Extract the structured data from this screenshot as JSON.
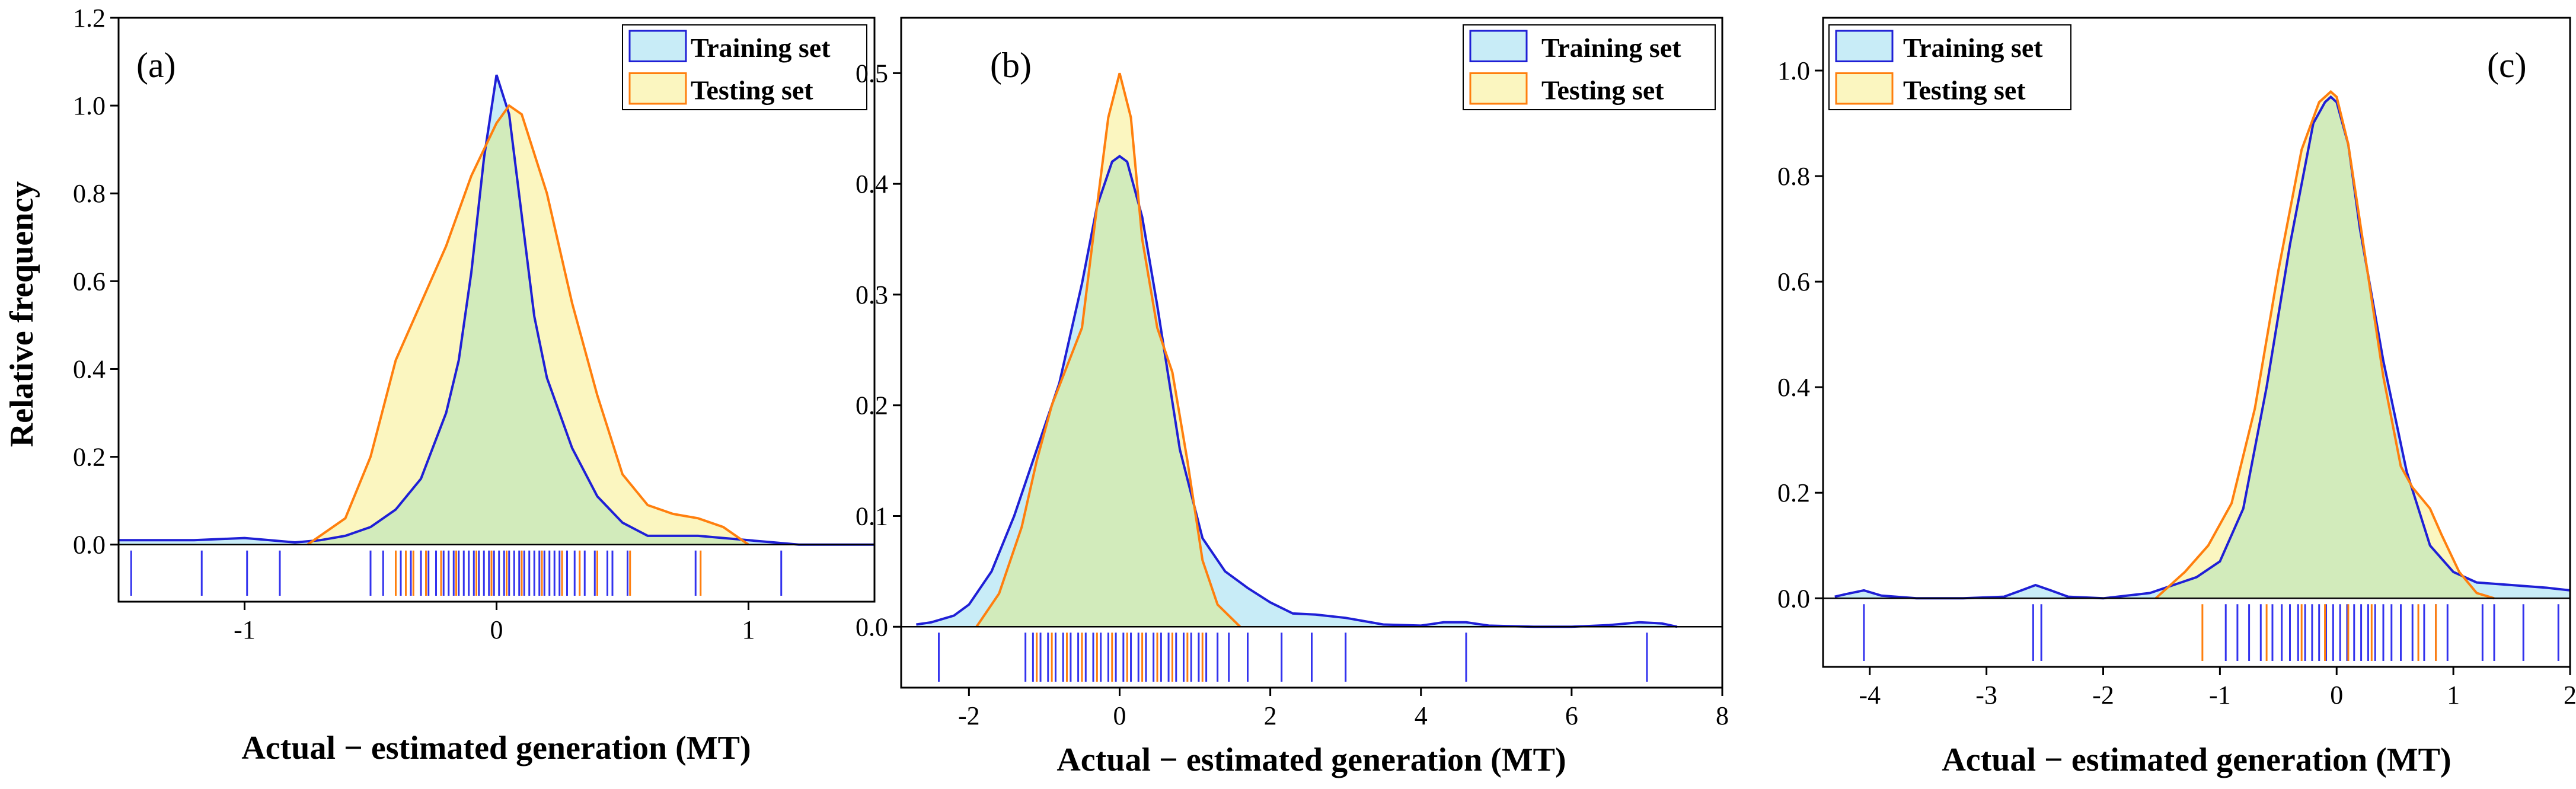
{
  "colors": {
    "training_line": "#1f1fd6",
    "training_fill": "#c8ecf7",
    "testing_line": "#ff7f0e",
    "testing_fill": "#fbf6c0",
    "overlap_fill": "#d2ebbb",
    "rug_training": "#3333ee",
    "rug_testing": "#ff7f0e"
  },
  "chart_data": [
    {
      "type": "area",
      "panel_label": "(a)",
      "xlabel": "Actual − estimated generation (MT)",
      "ylabel": "Relative frequency",
      "xlim": [
        -1.5,
        1.5
      ],
      "ylim": [
        -0.13,
        1.2
      ],
      "xticks": [
        -1,
        0,
        1
      ],
      "yticks": [
        0.0,
        0.2,
        0.4,
        0.6,
        0.8,
        1.0,
        1.2
      ],
      "ytick_labels": [
        "0.0",
        "0.2",
        "0.4",
        "0.6",
        "0.8",
        "1.0",
        "1.2"
      ],
      "legend_position": "top-right",
      "series": [
        {
          "name": "Training set",
          "x": [
            -1.5,
            -1.2,
            -1.0,
            -0.9,
            -0.8,
            -0.7,
            -0.6,
            -0.5,
            -0.4,
            -0.3,
            -0.2,
            -0.15,
            -0.1,
            -0.05,
            0.0,
            0.05,
            0.1,
            0.15,
            0.2,
            0.3,
            0.4,
            0.5,
            0.6,
            0.7,
            0.8,
            0.9,
            1.0,
            1.1,
            1.2,
            1.5
          ],
          "y": [
            0.01,
            0.01,
            0.015,
            0.01,
            0.005,
            0.01,
            0.02,
            0.04,
            0.08,
            0.15,
            0.3,
            0.42,
            0.62,
            0.88,
            1.07,
            0.98,
            0.75,
            0.52,
            0.38,
            0.22,
            0.11,
            0.05,
            0.02,
            0.02,
            0.02,
            0.015,
            0.01,
            0.005,
            0.0,
            0.0
          ]
        },
        {
          "name": "Testing set",
          "x": [
            -0.75,
            -0.6,
            -0.5,
            -0.4,
            -0.3,
            -0.2,
            -0.1,
            0.0,
            0.05,
            0.1,
            0.2,
            0.3,
            0.4,
            0.5,
            0.6,
            0.7,
            0.8,
            0.9,
            1.0
          ],
          "y": [
            0.0,
            0.06,
            0.2,
            0.42,
            0.55,
            0.68,
            0.84,
            0.96,
            1.0,
            0.98,
            0.8,
            0.55,
            0.34,
            0.16,
            0.09,
            0.07,
            0.06,
            0.04,
            0.0
          ]
        }
      ],
      "rug": {
        "training": [
          -1.45,
          -1.17,
          -0.99,
          -0.86,
          -0.5,
          -0.45,
          -0.38,
          -0.34,
          -0.3,
          -0.27,
          -0.24,
          -0.21,
          -0.19,
          -0.17,
          -0.15,
          -0.13,
          -0.11,
          -0.09,
          -0.07,
          -0.05,
          -0.03,
          -0.01,
          0.01,
          0.03,
          0.05,
          0.07,
          0.09,
          0.11,
          0.13,
          0.15,
          0.17,
          0.19,
          0.21,
          0.23,
          0.25,
          0.28,
          0.31,
          0.35,
          0.39,
          0.44,
          0.46,
          0.52,
          0.79,
          1.13
        ],
        "testing": [
          -0.4,
          -0.36,
          -0.33,
          -0.28,
          -0.22,
          -0.16,
          -0.08,
          -0.02,
          0.04,
          0.1,
          0.18,
          0.26,
          0.33,
          0.4,
          0.53,
          0.81
        ]
      }
    },
    {
      "type": "area",
      "panel_label": "(b)",
      "xlabel": "Actual − estimated generation (MT)",
      "ylabel": "",
      "xlim": [
        -2.9,
        8.0
      ],
      "ylim": [
        -0.055,
        0.55
      ],
      "xticks": [
        -2,
        0,
        2,
        4,
        6,
        8
      ],
      "yticks": [
        0.0,
        0.1,
        0.2,
        0.3,
        0.4,
        0.5
      ],
      "ytick_labels": [
        "0.0",
        "0.1",
        "0.2",
        "0.3",
        "0.4",
        "0.5"
      ],
      "legend_position": "top-right",
      "series": [
        {
          "name": "Training set",
          "x": [
            -2.7,
            -2.5,
            -2.2,
            -2.0,
            -1.7,
            -1.4,
            -1.1,
            -0.8,
            -0.5,
            -0.3,
            -0.1,
            0.0,
            0.1,
            0.3,
            0.5,
            0.8,
            1.1,
            1.4,
            1.7,
            2.0,
            2.3,
            2.6,
            3.0,
            3.5,
            4.0,
            4.3,
            4.6,
            4.9,
            5.5,
            6.0,
            6.5,
            6.9,
            7.2,
            7.4
          ],
          "y": [
            0.002,
            0.004,
            0.01,
            0.02,
            0.05,
            0.1,
            0.16,
            0.22,
            0.31,
            0.38,
            0.42,
            0.425,
            0.42,
            0.37,
            0.29,
            0.16,
            0.08,
            0.05,
            0.035,
            0.022,
            0.012,
            0.011,
            0.008,
            0.002,
            0.001,
            0.004,
            0.004,
            0.001,
            0.0,
            0.0,
            0.0015,
            0.004,
            0.003,
            0.0
          ]
        },
        {
          "name": "Testing set",
          "x": [
            -1.9,
            -1.6,
            -1.3,
            -1.1,
            -0.9,
            -0.7,
            -0.5,
            -0.3,
            -0.15,
            0.0,
            0.15,
            0.3,
            0.5,
            0.7,
            0.9,
            1.1,
            1.3,
            1.6
          ],
          "y": [
            0.0,
            0.03,
            0.09,
            0.15,
            0.2,
            0.235,
            0.27,
            0.38,
            0.46,
            0.5,
            0.46,
            0.35,
            0.27,
            0.23,
            0.15,
            0.06,
            0.02,
            0.0
          ]
        }
      ],
      "rug": {
        "training": [
          -2.4,
          -1.25,
          -1.15,
          -1.05,
          -0.95,
          -0.85,
          -0.75,
          -0.65,
          -0.55,
          -0.45,
          -0.35,
          -0.25,
          -0.15,
          -0.05,
          0.05,
          0.15,
          0.25,
          0.35,
          0.45,
          0.55,
          0.65,
          0.75,
          0.85,
          0.95,
          1.05,
          1.15,
          1.3,
          1.45,
          1.7,
          2.15,
          2.55,
          3.0,
          4.6,
          7.0
        ],
        "testing": [
          -1.1,
          -0.9,
          -0.7,
          -0.5,
          -0.3,
          -0.1,
          0.1,
          0.3,
          0.5,
          0.7,
          0.9,
          1.1
        ]
      }
    },
    {
      "type": "area",
      "panel_label": "(c)",
      "xlabel": "Actual − estimated generation (MT)",
      "ylabel": "",
      "xlim": [
        -4.4,
        2.0
      ],
      "ylim": [
        -0.13,
        1.1
      ],
      "xticks": [
        -4,
        -3,
        -2,
        -1,
        0,
        1,
        2
      ],
      "yticks": [
        0.0,
        0.2,
        0.4,
        0.6,
        0.8,
        1.0
      ],
      "ytick_labels": [
        "0.0",
        "0.2",
        "0.4",
        "0.6",
        "0.8",
        "1.0"
      ],
      "legend_position": "top-left",
      "series": [
        {
          "name": "Training set",
          "x": [
            -4.3,
            -4.2,
            -4.05,
            -3.9,
            -3.6,
            -3.2,
            -2.85,
            -2.7,
            -2.58,
            -2.45,
            -2.3,
            -2.0,
            -1.6,
            -1.2,
            -1.0,
            -0.8,
            -0.6,
            -0.4,
            -0.2,
            -0.1,
            -0.05,
            0.0,
            0.1,
            0.2,
            0.4,
            0.6,
            0.8,
            1.0,
            1.2,
            1.5,
            1.8,
            2.0
          ],
          "y": [
            0.003,
            0.008,
            0.015,
            0.005,
            0.0,
            0.0,
            0.003,
            0.015,
            0.025,
            0.015,
            0.003,
            0.0,
            0.01,
            0.04,
            0.07,
            0.17,
            0.4,
            0.67,
            0.9,
            0.94,
            0.95,
            0.94,
            0.86,
            0.7,
            0.45,
            0.24,
            0.1,
            0.05,
            0.03,
            0.025,
            0.02,
            0.015
          ]
        },
        {
          "name": "Testing set",
          "x": [
            -1.55,
            -1.3,
            -1.1,
            -0.9,
            -0.7,
            -0.5,
            -0.3,
            -0.15,
            -0.05,
            0.0,
            0.1,
            0.25,
            0.4,
            0.55,
            0.65,
            0.8,
            0.9,
            1.05,
            1.2,
            1.35
          ],
          "y": [
            0.0,
            0.05,
            0.1,
            0.18,
            0.36,
            0.62,
            0.85,
            0.94,
            0.96,
            0.95,
            0.86,
            0.64,
            0.42,
            0.25,
            0.21,
            0.17,
            0.12,
            0.05,
            0.01,
            0.0
          ]
        }
      ],
      "rug": {
        "training": [
          -4.05,
          -2.6,
          -2.53,
          -0.95,
          -0.85,
          -0.75,
          -0.65,
          -0.55,
          -0.47,
          -0.4,
          -0.33,
          -0.27,
          -0.21,
          -0.15,
          -0.09,
          -0.03,
          0.03,
          0.09,
          0.15,
          0.21,
          0.27,
          0.33,
          0.4,
          0.47,
          0.55,
          0.65,
          0.75,
          0.85,
          0.95,
          1.25,
          1.35,
          1.6,
          1.9
        ],
        "testing": [
          -1.15,
          -0.6,
          -0.3,
          -0.1,
          0.1,
          0.3,
          0.7,
          0.85
        ]
      }
    }
  ]
}
